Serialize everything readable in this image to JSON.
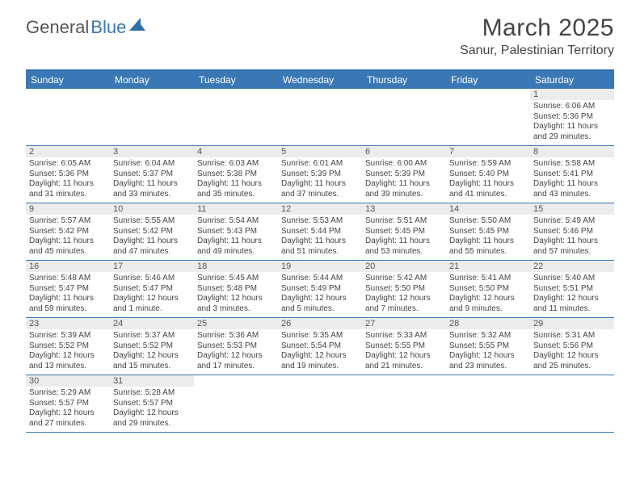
{
  "brand": {
    "part1": "General",
    "part2": "Blue"
  },
  "title": "March 2025",
  "location": "Sanur, Palestinian Territory",
  "colors": {
    "header_bg": "#3a78b5",
    "header_text": "#ffffff",
    "daynum_bg": "#ececec",
    "body_text": "#444444",
    "page_bg": "#ffffff",
    "divider": "#3a78b5"
  },
  "days_of_week": [
    "Sunday",
    "Monday",
    "Tuesday",
    "Wednesday",
    "Thursday",
    "Friday",
    "Saturday"
  ],
  "weeks": [
    [
      {
        "n": "",
        "sr": "",
        "ss": "",
        "dl": ""
      },
      {
        "n": "",
        "sr": "",
        "ss": "",
        "dl": ""
      },
      {
        "n": "",
        "sr": "",
        "ss": "",
        "dl": ""
      },
      {
        "n": "",
        "sr": "",
        "ss": "",
        "dl": ""
      },
      {
        "n": "",
        "sr": "",
        "ss": "",
        "dl": ""
      },
      {
        "n": "",
        "sr": "",
        "ss": "",
        "dl": ""
      },
      {
        "n": "1",
        "sr": "Sunrise: 6:06 AM",
        "ss": "Sunset: 5:36 PM",
        "dl": "Daylight: 11 hours and 29 minutes."
      }
    ],
    [
      {
        "n": "2",
        "sr": "Sunrise: 6:05 AM",
        "ss": "Sunset: 5:36 PM",
        "dl": "Daylight: 11 hours and 31 minutes."
      },
      {
        "n": "3",
        "sr": "Sunrise: 6:04 AM",
        "ss": "Sunset: 5:37 PM",
        "dl": "Daylight: 11 hours and 33 minutes."
      },
      {
        "n": "4",
        "sr": "Sunrise: 6:03 AM",
        "ss": "Sunset: 5:38 PM",
        "dl": "Daylight: 11 hours and 35 minutes."
      },
      {
        "n": "5",
        "sr": "Sunrise: 6:01 AM",
        "ss": "Sunset: 5:39 PM",
        "dl": "Daylight: 11 hours and 37 minutes."
      },
      {
        "n": "6",
        "sr": "Sunrise: 6:00 AM",
        "ss": "Sunset: 5:39 PM",
        "dl": "Daylight: 11 hours and 39 minutes."
      },
      {
        "n": "7",
        "sr": "Sunrise: 5:59 AM",
        "ss": "Sunset: 5:40 PM",
        "dl": "Daylight: 11 hours and 41 minutes."
      },
      {
        "n": "8",
        "sr": "Sunrise: 5:58 AM",
        "ss": "Sunset: 5:41 PM",
        "dl": "Daylight: 11 hours and 43 minutes."
      }
    ],
    [
      {
        "n": "9",
        "sr": "Sunrise: 5:57 AM",
        "ss": "Sunset: 5:42 PM",
        "dl": "Daylight: 11 hours and 45 minutes."
      },
      {
        "n": "10",
        "sr": "Sunrise: 5:55 AM",
        "ss": "Sunset: 5:42 PM",
        "dl": "Daylight: 11 hours and 47 minutes."
      },
      {
        "n": "11",
        "sr": "Sunrise: 5:54 AM",
        "ss": "Sunset: 5:43 PM",
        "dl": "Daylight: 11 hours and 49 minutes."
      },
      {
        "n": "12",
        "sr": "Sunrise: 5:53 AM",
        "ss": "Sunset: 5:44 PM",
        "dl": "Daylight: 11 hours and 51 minutes."
      },
      {
        "n": "13",
        "sr": "Sunrise: 5:51 AM",
        "ss": "Sunset: 5:45 PM",
        "dl": "Daylight: 11 hours and 53 minutes."
      },
      {
        "n": "14",
        "sr": "Sunrise: 5:50 AM",
        "ss": "Sunset: 5:45 PM",
        "dl": "Daylight: 11 hours and 55 minutes."
      },
      {
        "n": "15",
        "sr": "Sunrise: 5:49 AM",
        "ss": "Sunset: 5:46 PM",
        "dl": "Daylight: 11 hours and 57 minutes."
      }
    ],
    [
      {
        "n": "16",
        "sr": "Sunrise: 5:48 AM",
        "ss": "Sunset: 5:47 PM",
        "dl": "Daylight: 11 hours and 59 minutes."
      },
      {
        "n": "17",
        "sr": "Sunrise: 5:46 AM",
        "ss": "Sunset: 5:47 PM",
        "dl": "Daylight: 12 hours and 1 minute."
      },
      {
        "n": "18",
        "sr": "Sunrise: 5:45 AM",
        "ss": "Sunset: 5:48 PM",
        "dl": "Daylight: 12 hours and 3 minutes."
      },
      {
        "n": "19",
        "sr": "Sunrise: 5:44 AM",
        "ss": "Sunset: 5:49 PM",
        "dl": "Daylight: 12 hours and 5 minutes."
      },
      {
        "n": "20",
        "sr": "Sunrise: 5:42 AM",
        "ss": "Sunset: 5:50 PM",
        "dl": "Daylight: 12 hours and 7 minutes."
      },
      {
        "n": "21",
        "sr": "Sunrise: 5:41 AM",
        "ss": "Sunset: 5:50 PM",
        "dl": "Daylight: 12 hours and 9 minutes."
      },
      {
        "n": "22",
        "sr": "Sunrise: 5:40 AM",
        "ss": "Sunset: 5:51 PM",
        "dl": "Daylight: 12 hours and 11 minutes."
      }
    ],
    [
      {
        "n": "23",
        "sr": "Sunrise: 5:39 AM",
        "ss": "Sunset: 5:52 PM",
        "dl": "Daylight: 12 hours and 13 minutes."
      },
      {
        "n": "24",
        "sr": "Sunrise: 5:37 AM",
        "ss": "Sunset: 5:52 PM",
        "dl": "Daylight: 12 hours and 15 minutes."
      },
      {
        "n": "25",
        "sr": "Sunrise: 5:36 AM",
        "ss": "Sunset: 5:53 PM",
        "dl": "Daylight: 12 hours and 17 minutes."
      },
      {
        "n": "26",
        "sr": "Sunrise: 5:35 AM",
        "ss": "Sunset: 5:54 PM",
        "dl": "Daylight: 12 hours and 19 minutes."
      },
      {
        "n": "27",
        "sr": "Sunrise: 5:33 AM",
        "ss": "Sunset: 5:55 PM",
        "dl": "Daylight: 12 hours and 21 minutes."
      },
      {
        "n": "28",
        "sr": "Sunrise: 5:32 AM",
        "ss": "Sunset: 5:55 PM",
        "dl": "Daylight: 12 hours and 23 minutes."
      },
      {
        "n": "29",
        "sr": "Sunrise: 5:31 AM",
        "ss": "Sunset: 5:56 PM",
        "dl": "Daylight: 12 hours and 25 minutes."
      }
    ],
    [
      {
        "n": "30",
        "sr": "Sunrise: 5:29 AM",
        "ss": "Sunset: 5:57 PM",
        "dl": "Daylight: 12 hours and 27 minutes."
      },
      {
        "n": "31",
        "sr": "Sunrise: 5:28 AM",
        "ss": "Sunset: 5:57 PM",
        "dl": "Daylight: 12 hours and 29 minutes."
      },
      {
        "n": "",
        "sr": "",
        "ss": "",
        "dl": ""
      },
      {
        "n": "",
        "sr": "",
        "ss": "",
        "dl": ""
      },
      {
        "n": "",
        "sr": "",
        "ss": "",
        "dl": ""
      },
      {
        "n": "",
        "sr": "",
        "ss": "",
        "dl": ""
      },
      {
        "n": "",
        "sr": "",
        "ss": "",
        "dl": ""
      }
    ]
  ]
}
